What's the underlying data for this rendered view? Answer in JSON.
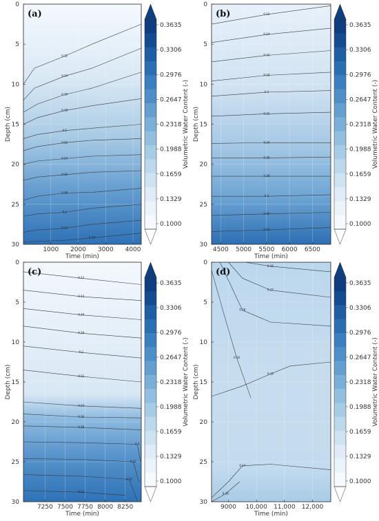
{
  "chart_data": [
    {
      "type": "heatmap",
      "panel_label": "(a)",
      "xlabel": "Time (min)",
      "ylabel": "Depth (cm)",
      "xlim": [
        0,
        4300
      ],
      "ylim": [
        30,
        0
      ],
      "xticks": [
        1000,
        2000,
        3000,
        4000
      ],
      "xtick_labels": [
        "1000",
        "2000",
        "3000",
        "4000"
      ],
      "yticks": [
        0,
        5,
        10,
        15,
        20,
        25,
        30
      ],
      "contour_values": [
        0.12,
        0.14,
        0.16,
        0.18,
        0.2,
        0.22,
        0.24,
        0.26,
        0.28,
        0.3,
        0.32,
        0.34
      ],
      "isolines": [
        {
          "points": [
            [
              0,
              10
            ],
            [
              400,
              8
            ],
            [
              1500,
              6.5
            ],
            [
              2500,
              5
            ],
            [
              4300,
              2.5
            ]
          ]
        },
        {
          "points": [
            [
              0,
              12
            ],
            [
              400,
              10.5
            ],
            [
              1500,
              9
            ],
            [
              2500,
              8
            ],
            [
              4300,
              5.5
            ]
          ]
        },
        {
          "points": [
            [
              0,
              13.5
            ],
            [
              500,
              12.5
            ],
            [
              1500,
              11.3
            ],
            [
              2500,
              10.5
            ],
            [
              4300,
              8.5
            ]
          ]
        },
        {
          "points": [
            [
              0,
              15
            ],
            [
              500,
              14.2
            ],
            [
              1500,
              13.3
            ],
            [
              2500,
              12.7
            ],
            [
              4300,
              11.8
            ]
          ]
        },
        {
          "points": [
            [
              0,
              16.8
            ],
            [
              500,
              16.3
            ],
            [
              1500,
              15.8
            ],
            [
              2500,
              15.5
            ],
            [
              4300,
              15
            ]
          ]
        },
        {
          "points": [
            [
              0,
              18.3
            ],
            [
              500,
              17.8
            ],
            [
              1500,
              17.3
            ],
            [
              2500,
              17
            ],
            [
              4300,
              16.8
            ]
          ]
        },
        {
          "points": [
            [
              0,
              20
            ],
            [
              500,
              19.6
            ],
            [
              1500,
              19.3
            ],
            [
              2500,
              19
            ],
            [
              4300,
              18.8
            ]
          ]
        },
        {
          "points": [
            [
              0,
              22
            ],
            [
              500,
              21.6
            ],
            [
              1500,
              21.3
            ],
            [
              2500,
              21
            ],
            [
              4300,
              20.8
            ]
          ]
        },
        {
          "points": [
            [
              0,
              24.5
            ],
            [
              500,
              24
            ],
            [
              1500,
              23.6
            ],
            [
              2500,
              23.5
            ],
            [
              4300,
              23
            ]
          ]
        },
        {
          "points": [
            [
              0,
              26.5
            ],
            [
              500,
              26.2
            ],
            [
              1500,
              26
            ],
            [
              2500,
              25.5
            ],
            [
              4300,
              25
            ]
          ]
        },
        {
          "points": [
            [
              0,
              28.5
            ],
            [
              500,
              28.2
            ],
            [
              1500,
              28
            ],
            [
              2500,
              27.5
            ],
            [
              4300,
              27
            ]
          ]
        },
        {
          "points": [
            [
              0,
              29.7
            ],
            [
              1500,
              29.5
            ],
            [
              2500,
              29.2
            ],
            [
              4300,
              28.6
            ]
          ]
        }
      ]
    },
    {
      "type": "heatmap",
      "panel_label": "(b)",
      "xlabel": "Time (min)",
      "ylabel": "Depth (cm)",
      "xlim": [
        4300,
        6900
      ],
      "ylim": [
        30,
        0
      ],
      "xticks": [
        4500,
        5000,
        5500,
        6000,
        6500
      ],
      "xtick_labels": [
        "4500",
        "5000",
        "5500",
        "6000",
        "6500"
      ],
      "yticks": [
        0,
        5,
        10,
        15,
        20,
        25,
        30
      ],
      "contour_values": [
        0.12,
        0.14,
        0.16,
        0.18,
        0.2,
        0.22,
        0.24,
        0.26,
        0.28,
        0.3,
        0.32,
        0.34
      ],
      "isolines": [
        {
          "points": [
            [
              4300,
              2.5
            ],
            [
              5500,
              1.3
            ],
            [
              6900,
              0.2
            ]
          ]
        },
        {
          "points": [
            [
              4300,
              4.8
            ],
            [
              5500,
              3.8
            ],
            [
              6900,
              3
            ]
          ]
        },
        {
          "points": [
            [
              4300,
              7.2
            ],
            [
              5500,
              6.4
            ],
            [
              6900,
              5.8
            ]
          ]
        },
        {
          "points": [
            [
              4300,
              9.6
            ],
            [
              5500,
              8.9
            ],
            [
              6900,
              8.5
            ]
          ]
        },
        {
          "points": [
            [
              4300,
              11.5
            ],
            [
              5500,
              11
            ],
            [
              6900,
              10.8
            ]
          ]
        },
        {
          "points": [
            [
              4300,
              14
            ],
            [
              5500,
              13.7
            ],
            [
              6900,
              13.5
            ]
          ]
        },
        {
          "points": [
            [
              4300,
              17.4
            ],
            [
              5500,
              17.3
            ],
            [
              6900,
              17.3
            ]
          ]
        },
        {
          "points": [
            [
              4300,
              19.2
            ],
            [
              5500,
              19.2
            ],
            [
              6900,
              19.1
            ]
          ]
        },
        {
          "points": [
            [
              4300,
              21.5
            ],
            [
              5500,
              21.5
            ],
            [
              6900,
              21.5
            ]
          ]
        },
        {
          "points": [
            [
              4300,
              24
            ],
            [
              5500,
              24
            ],
            [
              6900,
              23.8
            ]
          ]
        },
        {
          "points": [
            [
              4300,
              26.4
            ],
            [
              5500,
              26.2
            ],
            [
              6900,
              26
            ]
          ]
        },
        {
          "points": [
            [
              4300,
              28.4
            ],
            [
              5500,
              28.2
            ],
            [
              6900,
              27.9
            ]
          ]
        }
      ]
    },
    {
      "type": "heatmap",
      "panel_label": "(c)",
      "xlabel": "Time (min)",
      "ylabel": "Depth (cm)",
      "xlim": [
        6980,
        8450
      ],
      "ylim": [
        30,
        0
      ],
      "xticks": [
        7250,
        7500,
        7750,
        8000,
        8250
      ],
      "xtick_labels": [
        "7250",
        "7500",
        "7750",
        "8000",
        "8250"
      ],
      "yticks": [
        0,
        5,
        10,
        15,
        20,
        25,
        30
      ],
      "contour_values": [
        0.12,
        0.14,
        0.16,
        0.18,
        0.2,
        0.22,
        0.24,
        0.26,
        0.28,
        0.3,
        0.32
      ],
      "isolines": [
        {
          "points": [
            [
              6980,
              1.2
            ],
            [
              7700,
              2
            ],
            [
              8450,
              2.8
            ]
          ]
        },
        {
          "points": [
            [
              6980,
              3.5
            ],
            [
              7700,
              4.3
            ],
            [
              8450,
              4.8
            ]
          ]
        },
        {
          "points": [
            [
              6980,
              5.8
            ],
            [
              7700,
              6.6
            ],
            [
              8450,
              7.2
            ]
          ]
        },
        {
          "points": [
            [
              6980,
              8
            ],
            [
              7700,
              8.9
            ],
            [
              8450,
              9.5
            ]
          ]
        },
        {
          "points": [
            [
              6980,
              10.5
            ],
            [
              7700,
              11.3
            ],
            [
              8450,
              12
            ]
          ]
        },
        {
          "points": [
            [
              6980,
              13.5
            ],
            [
              7700,
              14.3
            ],
            [
              8450,
              15
            ]
          ]
        },
        {
          "points": [
            [
              6980,
              17.5
            ],
            [
              7700,
              18
            ],
            [
              8450,
              18.3
            ]
          ]
        },
        {
          "points": [
            [
              6980,
              19
            ],
            [
              7700,
              19.4
            ],
            [
              8450,
              19.5
            ]
          ]
        },
        {
          "points": [
            [
              6980,
              20.5
            ],
            [
              7700,
              20.7
            ],
            [
              8450,
              21
            ]
          ]
        },
        {
          "points": [
            [
              6980,
              22.5
            ],
            [
              7700,
              22.6
            ],
            [
              8400,
              22.8
            ],
            [
              8440,
              25
            ]
          ]
        },
        {
          "points": [
            [
              6980,
              24.6
            ],
            [
              7700,
              24.7
            ],
            [
              8350,
              25
            ],
            [
              8420,
              27.5
            ]
          ]
        },
        {
          "points": [
            [
              6980,
              26.6
            ],
            [
              7700,
              26.8
            ],
            [
              8300,
              27.2
            ],
            [
              8400,
              29.9
            ]
          ]
        },
        {
          "points": [
            [
              6980,
              28.6
            ],
            [
              7700,
              28.8
            ],
            [
              8250,
              29.2
            ]
          ]
        }
      ]
    },
    {
      "type": "heatmap",
      "panel_label": "(d)",
      "xlabel": "Time (min)",
      "ylabel": "Depth (cm)",
      "xlim": [
        8400,
        12650
      ],
      "ylim": [
        30,
        0
      ],
      "xticks": [
        9000,
        10000,
        11000,
        12000
      ],
      "xtick_labels": [
        "9000",
        "10,000",
        "11,000",
        "12,000"
      ],
      "yticks": [
        0,
        5,
        10,
        15,
        20,
        25,
        30
      ],
      "contour_values": [
        0.16,
        0.17,
        0.18,
        0.19
      ],
      "isolines": [
        {
          "points": [
            [
              9600,
              0
            ],
            [
              10500,
              0.5
            ],
            [
              12650,
              1.2
            ]
          ]
        },
        {
          "points": [
            [
              9000,
              0
            ],
            [
              9500,
              2
            ],
            [
              10500,
              3.5
            ],
            [
              12650,
              4.4
            ]
          ]
        },
        {
          "points": [
            [
              8700,
              0
            ],
            [
              9100,
              3
            ],
            [
              9500,
              6
            ],
            [
              10500,
              7.5
            ],
            [
              12650,
              8
            ]
          ]
        },
        {
          "points": [
            [
              8400,
              16.8
            ],
            [
              9500,
              15.5
            ],
            [
              10500,
              14
            ],
            [
              11200,
              13
            ],
            [
              12650,
              12.5
            ]
          ]
        },
        {
          "points": [
            [
              8400,
              1
            ],
            [
              8800,
              6
            ],
            [
              9300,
              12
            ],
            [
              9800,
              17
            ]
          ]
        },
        {
          "points": [
            [
              8400,
              29.5
            ],
            [
              9000,
              27.5
            ],
            [
              9500,
              25.5
            ],
            [
              10500,
              25.3
            ],
            [
              12650,
              26
            ]
          ]
        },
        {
          "points": [
            [
              8400,
              30
            ],
            [
              8900,
              29
            ],
            [
              9400,
              27.5
            ]
          ]
        }
      ]
    }
  ],
  "colorbar": {
    "label": "Volumetric Water Content (-)",
    "tick_labels": [
      "0.3635",
      "0.3306",
      "0.2976",
      "0.2647",
      "0.2318",
      "0.1988",
      "0.1659",
      "0.1329",
      "0.1000"
    ],
    "colors_top_to_bottom": [
      "#0f3e7e",
      "#154b8f",
      "#1f5ea3",
      "#2b6fb3",
      "#3b7fbe",
      "#4f8fc8",
      "#649fd0",
      "#7aafd8",
      "#92bfe0",
      "#a7cce6",
      "#bbd8ec",
      "#cee3f1",
      "#dfecf7",
      "#ecf4fb",
      "#f6fafe"
    ]
  }
}
